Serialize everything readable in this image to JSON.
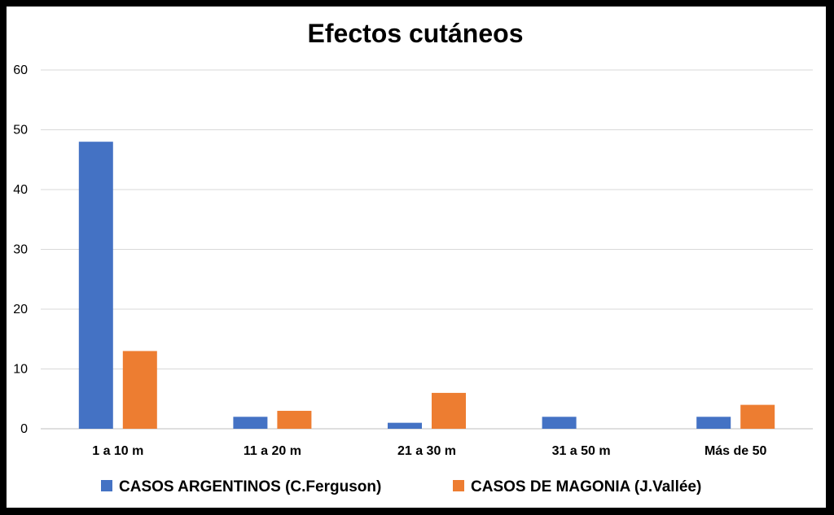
{
  "chart_data": {
    "type": "bar",
    "title": "Efectos cutáneos",
    "categories": [
      "1 a 10 m",
      "11 a 20 m",
      "21 a 30 m",
      "31 a 50 m",
      "Más de 50"
    ],
    "series": [
      {
        "name": "CASOS ARGENTINOS (C.Ferguson)",
        "color": "#4472C4",
        "values": [
          48,
          2,
          1,
          2,
          2
        ]
      },
      {
        "name": "CASOS DE MAGONIA (J.Vallée)",
        "color": "#ED7D31",
        "values": [
          13,
          3,
          6,
          0,
          4
        ]
      }
    ],
    "ylim": [
      0,
      60
    ],
    "yticks": [
      0,
      10,
      20,
      30,
      40,
      50,
      60
    ],
    "grid": true,
    "legend": "bottom"
  }
}
